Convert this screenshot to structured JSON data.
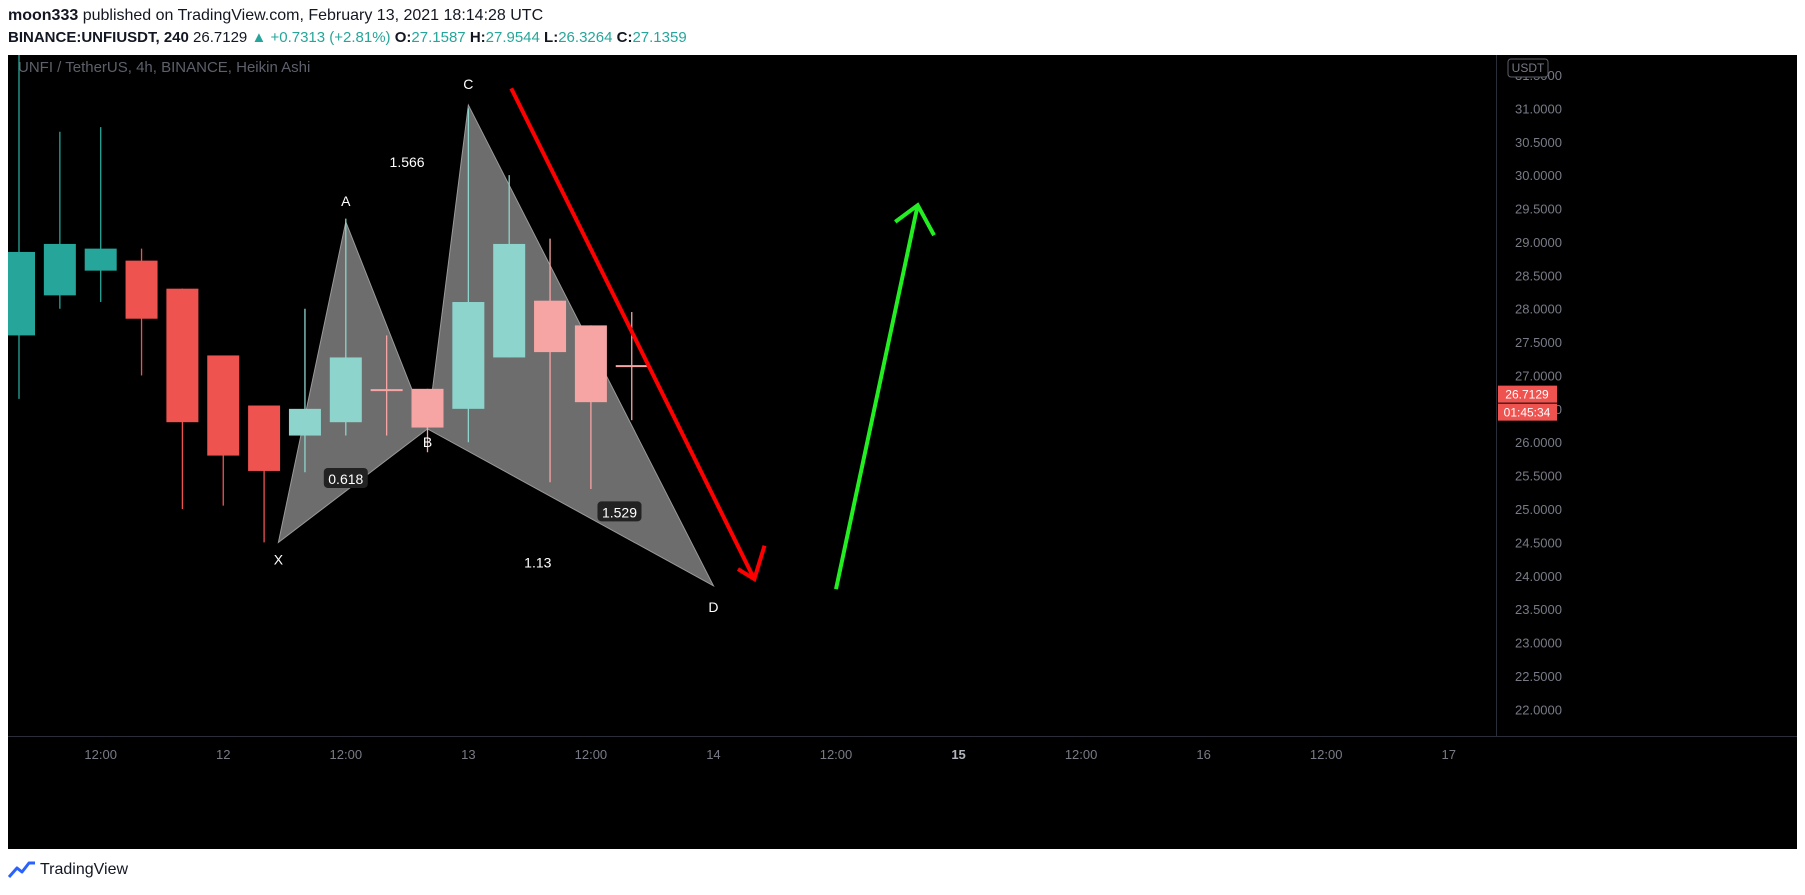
{
  "header": {
    "author": "moon333",
    "published_text": "published on TradingView.com, February 13, 2021 18:14:28 UTC",
    "symbol": "BINANCE:UNFIUSDT, 240",
    "last": "26.7129",
    "change": "+0.7313 (+2.81%)",
    "o_label": "O:",
    "o_value": "27.1587",
    "h_label": "H:",
    "h_value": "27.9544",
    "l_label": "L:",
    "l_value": "26.3264",
    "c_label": "C:",
    "c_value": "27.1359"
  },
  "footer": {
    "brand": "TradingView"
  },
  "colors": {
    "background": "#000000",
    "up": "#26a69a",
    "up_light": "#8dd4cd",
    "down": "#ef5350",
    "down_light": "#f7a5a4",
    "pattern": "#808080",
    "red_arrow": "#ff0000",
    "green_arrow": "#22ee22"
  },
  "chart_data": {
    "type": "candlestick",
    "title": "UNFI / TetherUS, 4h, BINANCE, Heikin Ashi",
    "currency_badge": "USDT",
    "last_price_label": "26.7129",
    "countdown_label": "01:45:34",
    "ylim": [
      21.6,
      31.8
    ],
    "y_ticks": [
      "31.5000",
      "31.0000",
      "30.5000",
      "30.0000",
      "29.5000",
      "29.0000",
      "28.5000",
      "28.0000",
      "27.5000",
      "27.0000",
      "26.5000",
      "26.0000",
      "25.5000",
      "25.0000",
      "24.5000",
      "24.0000",
      "23.5000",
      "23.0000",
      "22.5000",
      "22.0000"
    ],
    "x_ticks": [
      {
        "label": "12:00",
        "i": 2,
        "bold": false
      },
      {
        "label": "12",
        "i": 5,
        "bold": false
      },
      {
        "label": "12:00",
        "i": 8,
        "bold": false
      },
      {
        "label": "13",
        "i": 11,
        "bold": false
      },
      {
        "label": "12:00",
        "i": 14,
        "bold": false
      },
      {
        "label": "14",
        "i": 17,
        "bold": false
      },
      {
        "label": "12:00",
        "i": 20,
        "bold": false
      },
      {
        "label": "15",
        "i": 23,
        "bold": true
      },
      {
        "label": "12:00",
        "i": 26,
        "bold": false
      },
      {
        "label": "16",
        "i": 29,
        "bold": false
      },
      {
        "label": "12:00",
        "i": 32,
        "bold": false
      },
      {
        "label": "17",
        "i": 35,
        "bold": false
      }
    ],
    "candles": [
      {
        "i": 0,
        "o": 27.6,
        "h": 31.9,
        "l": 26.65,
        "c": 28.85,
        "style": "up"
      },
      {
        "i": 1,
        "o": 28.2,
        "h": 30.65,
        "l": 28.0,
        "c": 28.97,
        "style": "up"
      },
      {
        "i": 2,
        "o": 28.57,
        "h": 30.72,
        "l": 28.1,
        "c": 28.9,
        "style": "up"
      },
      {
        "i": 3,
        "o": 28.72,
        "h": 28.9,
        "l": 27.0,
        "c": 27.85,
        "style": "down"
      },
      {
        "i": 4,
        "o": 28.3,
        "h": 28.3,
        "l": 25.0,
        "c": 26.3,
        "style": "down"
      },
      {
        "i": 5,
        "o": 27.3,
        "h": 27.3,
        "l": 25.05,
        "c": 25.8,
        "style": "down"
      },
      {
        "i": 6,
        "o": 26.55,
        "h": 26.55,
        "l": 24.5,
        "c": 25.57,
        "style": "down"
      },
      {
        "i": 7,
        "o": 26.1,
        "h": 28.0,
        "l": 25.55,
        "c": 26.5,
        "style": "up_light"
      },
      {
        "i": 8,
        "o": 26.3,
        "h": 29.35,
        "l": 26.1,
        "c": 27.27,
        "style": "up_light"
      },
      {
        "i": 9,
        "o": 26.8,
        "h": 27.6,
        "l": 26.1,
        "c": 26.78,
        "style": "doji"
      },
      {
        "i": 10,
        "o": 26.8,
        "h": 26.8,
        "l": 25.85,
        "c": 26.22,
        "style": "down_light"
      },
      {
        "i": 11,
        "o": 26.5,
        "h": 31.0,
        "l": 26.0,
        "c": 28.1,
        "style": "up_light"
      },
      {
        "i": 12,
        "o": 27.27,
        "h": 30.0,
        "l": 27.27,
        "c": 28.97,
        "style": "up_light"
      },
      {
        "i": 13,
        "o": 28.12,
        "h": 29.05,
        "l": 25.4,
        "c": 27.35,
        "style": "down_light"
      },
      {
        "i": 14,
        "o": 27.75,
        "h": 27.75,
        "l": 25.3,
        "c": 26.6,
        "style": "down_light"
      },
      {
        "i": 15,
        "o": 27.15,
        "h": 27.95,
        "l": 26.33,
        "c": 27.14,
        "style": "doji"
      }
    ],
    "pattern": {
      "points": [
        {
          "label": "X",
          "i": 6.35,
          "price": 24.5
        },
        {
          "label": "A",
          "i": 8.0,
          "price": 29.3
        },
        {
          "label": "B",
          "i": 10.0,
          "price": 26.2
        },
        {
          "label": "C",
          "i": 11.0,
          "price": 31.05
        },
        {
          "label": "D",
          "i": 17.0,
          "price": 23.85
        }
      ],
      "ratios": [
        {
          "text": "0.618",
          "i": 8.0,
          "price": 25.45,
          "boxed": true
        },
        {
          "text": "1.566",
          "i": 9.5,
          "price": 30.2,
          "boxed": false
        },
        {
          "text": "1.529",
          "i": 14.7,
          "price": 24.95,
          "boxed": true
        },
        {
          "text": "1.13",
          "i": 12.7,
          "price": 24.2,
          "boxed": false
        }
      ]
    }
  }
}
